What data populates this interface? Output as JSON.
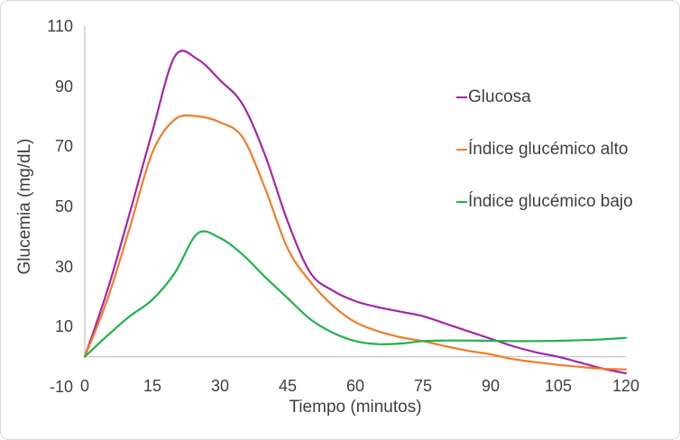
{
  "chart_data": {
    "type": "line",
    "title": "",
    "xlabel": "Tiempo (minutos)",
    "ylabel": "Glucemia (mg/dL)",
    "xlim": [
      0,
      120
    ],
    "ylim": [
      -10,
      110
    ],
    "x_ticks": [
      0,
      15,
      30,
      45,
      60,
      75,
      90,
      105,
      120
    ],
    "y_ticks": [
      110,
      90,
      70,
      50,
      30,
      10,
      -10
    ],
    "grid": false,
    "legend_position": "right",
    "axis_color": "#bfbfbf",
    "text_color": "#3f3f3f",
    "series": [
      {
        "name": "Glucosa",
        "color": "#a326a8",
        "points": [
          [
            0,
            0
          ],
          [
            5,
            22
          ],
          [
            10,
            48
          ],
          [
            15,
            75
          ],
          [
            20,
            100
          ],
          [
            25,
            99
          ],
          [
            30,
            92
          ],
          [
            35,
            84
          ],
          [
            40,
            67
          ],
          [
            45,
            45
          ],
          [
            50,
            28
          ],
          [
            55,
            22
          ],
          [
            60,
            18.5
          ],
          [
            65,
            16.5
          ],
          [
            70,
            15
          ],
          [
            75,
            13.5
          ],
          [
            80,
            11
          ],
          [
            85,
            8.5
          ],
          [
            90,
            6
          ],
          [
            95,
            3.5
          ],
          [
            100,
            1.5
          ],
          [
            105,
            0
          ],
          [
            110,
            -2
          ],
          [
            115,
            -4
          ],
          [
            120,
            -5.5
          ]
        ]
      },
      {
        "name": "Índice glucémico alto",
        "color": "#ef7d28",
        "points": [
          [
            0,
            0
          ],
          [
            5,
            19
          ],
          [
            10,
            43
          ],
          [
            15,
            68
          ],
          [
            20,
            79
          ],
          [
            25,
            80
          ],
          [
            30,
            78
          ],
          [
            35,
            73
          ],
          [
            40,
            56
          ],
          [
            45,
            36
          ],
          [
            50,
            25
          ],
          [
            55,
            17
          ],
          [
            60,
            11.5
          ],
          [
            65,
            8.5
          ],
          [
            70,
            6.5
          ],
          [
            75,
            5.2
          ],
          [
            80,
            3.5
          ],
          [
            85,
            2
          ],
          [
            90,
            0.8
          ],
          [
            95,
            -0.8
          ],
          [
            100,
            -1.8
          ],
          [
            105,
            -2.7
          ],
          [
            110,
            -3.4
          ],
          [
            115,
            -4
          ],
          [
            120,
            -4.2
          ]
        ]
      },
      {
        "name": "Índice glucémico bajo",
        "color": "#22b14c",
        "points": [
          [
            0,
            0
          ],
          [
            5,
            7
          ],
          [
            10,
            13.5
          ],
          [
            15,
            19
          ],
          [
            20,
            28
          ],
          [
            25,
            41
          ],
          [
            30,
            39.5
          ],
          [
            35,
            34
          ],
          [
            40,
            26.5
          ],
          [
            45,
            19.5
          ],
          [
            50,
            12.5
          ],
          [
            55,
            8
          ],
          [
            60,
            5.2
          ],
          [
            65,
            4.2
          ],
          [
            70,
            4.4
          ],
          [
            75,
            5.2
          ],
          [
            80,
            5.4
          ],
          [
            85,
            5.4
          ],
          [
            90,
            5.3
          ],
          [
            95,
            5.2
          ],
          [
            100,
            5.2
          ],
          [
            105,
            5.3
          ],
          [
            110,
            5.5
          ],
          [
            115,
            5.8
          ],
          [
            120,
            6.3
          ]
        ]
      }
    ]
  }
}
